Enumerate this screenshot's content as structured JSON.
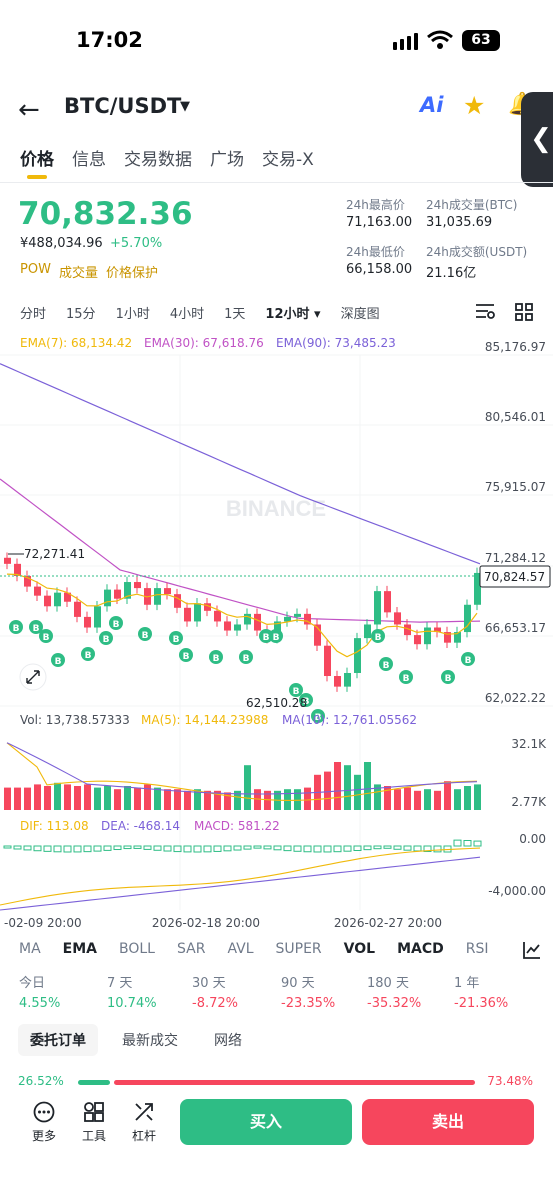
{
  "status": {
    "time": "17:02",
    "battery": "63"
  },
  "header": {
    "pair": "BTC/USDT",
    "ai_label": "Ai"
  },
  "tabs": [
    "价格",
    "信息",
    "交易数据",
    "广场",
    "交易-X"
  ],
  "ticker": {
    "price": "70,832.36",
    "cny": "¥488,034.96",
    "change": "+5.70%",
    "flags": [
      "POW",
      "成交量",
      "价格保护"
    ],
    "high_label": "24h最高价",
    "high": "71,163.00",
    "vol_btc_label": "24h成交量(BTC)",
    "vol_btc": "31,035.69",
    "low_label": "24h最低价",
    "low": "66,158.00",
    "vol_usdt_label": "24h成交额(USDT)",
    "vol_usdt": "21.16亿"
  },
  "intervals": [
    "分时",
    "15分",
    "1小时",
    "4小时",
    "1天",
    "12小时",
    "深度图"
  ],
  "selected_interval": "12小时",
  "chart_data": {
    "type": "candlestick",
    "ema_legend": [
      {
        "label": "EMA(7): 68,134.42",
        "color": "#f0b90b"
      },
      {
        "label": "EMA(30): 67,618.76",
        "color": "#c052c5"
      },
      {
        "label": "EMA(90): 73,485.23",
        "color": "#7b61d8"
      }
    ],
    "y_ticks": [
      "85,176.97",
      "80,546.01",
      "75,915.07",
      "71,284.12",
      "66,653.17",
      "62,022.22"
    ],
    "ylim": [
      62022.22,
      85176.97
    ],
    "current_price": "70,824.57",
    "high_marker": "72,271.41",
    "low_marker": "62,510.28",
    "watermark": "BINANCE",
    "buy_marker": "B",
    "vol_legend": {
      "vol": "Vol: 13,738.57333",
      "ma5": "MA(5): 14,144.23988",
      "ma10": "MA(10): 12,761.05562"
    },
    "vol_ticks": [
      "32.1K",
      "2.77K"
    ],
    "macd_legend": {
      "dif": "DIF: 113.08",
      "dea": "DEA: -468.14",
      "macd": "MACD: 581.22"
    },
    "macd_ticks": [
      "0.00",
      "-4,000.00"
    ],
    "x_ticks": [
      "-02-09 20:00",
      "2026-02-18 20:00",
      "2026-02-27 20:00"
    ],
    "colors": {
      "up": "#2ebd85",
      "down": "#f6465d"
    }
  },
  "indicator_tabs": [
    "MA",
    "EMA",
    "BOLL",
    "SAR",
    "AVL",
    "SUPER",
    "VOL",
    "MACD",
    "RSI"
  ],
  "performance": [
    {
      "label": "今日",
      "value": "4.55%"
    },
    {
      "label": "7 天",
      "value": "10.74%"
    },
    {
      "label": "30 天",
      "value": "-8.72%"
    },
    {
      "label": "90 天",
      "value": "-23.35%"
    },
    {
      "label": "180 天",
      "value": "-35.32%"
    },
    {
      "label": "1 年",
      "value": "-21.36%"
    }
  ],
  "order_tabs": [
    "委托订单",
    "最新成交",
    "网络"
  ],
  "ratio": {
    "buy": "26.52%",
    "sell": "73.48%",
    "buy_fraction": 0.2652
  },
  "bottom": {
    "more": "更多",
    "tools": "工具",
    "leverage": "杠杆",
    "buy": "买入",
    "sell": "卖出"
  }
}
